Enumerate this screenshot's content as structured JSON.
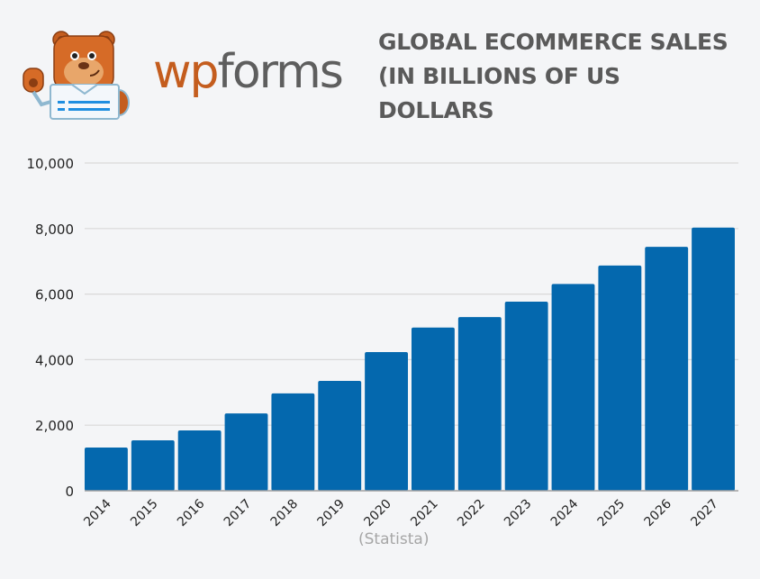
{
  "logo": {
    "brand_part1": "wp",
    "brand_part2": "forms",
    "mascot_icon": "bear-mascot-icon"
  },
  "header": {
    "title": "GLOBAL ECOMMERCE SALES (IN BILLIONS OF US DOLLARS"
  },
  "source": "(Statista)",
  "colors": {
    "bar": "#0468ae",
    "grid": "#d9d9d9",
    "axis": "#a0a0a0",
    "background": "#f4f5f7",
    "title": "#5a5a5a",
    "brand_orange": "#c45d1e",
    "brand_gray": "#5e5e5e"
  },
  "chart_data": {
    "type": "bar",
    "title": "GLOBAL ECOMMERCE SALES (IN BILLIONS OF US DOLLARS",
    "xlabel": "",
    "ylabel": "",
    "categories": [
      "2014",
      "2015",
      "2016",
      "2017",
      "2018",
      "2019",
      "2020",
      "2021",
      "2022",
      "2023",
      "2024",
      "2025",
      "2026",
      "2027"
    ],
    "values": [
      1320,
      1540,
      1840,
      2360,
      2970,
      3350,
      4230,
      4980,
      5300,
      5770,
      6310,
      6870,
      7440,
      8030
    ],
    "ylim": [
      0,
      10000
    ],
    "yticks": [
      0,
      2000,
      4000,
      6000,
      8000,
      10000
    ],
    "ytick_labels": [
      "0",
      "2,000",
      "4,000",
      "6,000",
      "8,000",
      "10,000"
    ],
    "grid": true,
    "legend": null,
    "source": "(Statista)"
  }
}
